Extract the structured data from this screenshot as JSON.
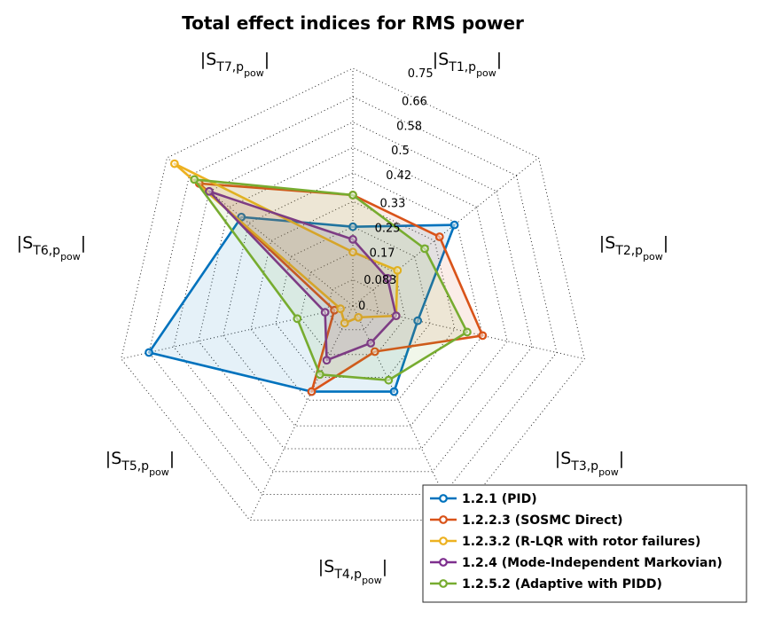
{
  "chart_data": {
    "type": "radar",
    "title": "Total effect indices for RMS power",
    "axes": [
      {
        "base": "|S",
        "sub": "T1,p",
        "subsub": "pow",
        "tail": "|"
      },
      {
        "base": "|S",
        "sub": "T2,p",
        "subsub": "pow",
        "tail": "|"
      },
      {
        "base": "|S",
        "sub": "T3,p",
        "subsub": "pow",
        "tail": "|"
      },
      {
        "base": "|S",
        "sub": "T4,p",
        "subsub": "pow",
        "tail": "|"
      },
      {
        "base": "|S",
        "sub": "T5,p",
        "subsub": "pow",
        "tail": "|"
      },
      {
        "base": "|S",
        "sub": "T6,p",
        "subsub": "pow",
        "tail": "|"
      },
      {
        "base": "|S",
        "sub": "T7,p",
        "subsub": "pow",
        "tail": "|"
      }
    ],
    "rlim": [
      0,
      0.75
    ],
    "ticks": [
      0,
      0.083,
      0.17,
      0.25,
      0.33,
      0.42,
      0.5,
      0.58,
      0.66,
      0.75
    ],
    "tick_labels": [
      "0",
      "0.083",
      "0.17",
      "0.25",
      "0.33",
      "0.42",
      "0.5",
      "0.58",
      "0.66",
      "0.75"
    ],
    "grid": true,
    "legend_position": "bottom-right",
    "series": [
      {
        "name": "1.2.1 (PID)",
        "color": "#0072BD",
        "values": [
          0.41,
          0.21,
          0.3,
          0.3,
          0.66,
          0.45,
          0.25
        ]
      },
      {
        "name": "1.2.2.3 (SOSMC Direct)",
        "color": "#D95319",
        "values": [
          0.35,
          0.42,
          0.16,
          0.3,
          0.06,
          0.62,
          0.35
        ]
      },
      {
        "name": "1.2.3.2 (R-LQR with rotor failures)",
        "color": "#EDB120",
        "values": [
          0.18,
          0.14,
          0.04,
          0.06,
          0.04,
          0.72,
          0.17
        ]
      },
      {
        "name": "1.2.4 (Mode-Independent Markovian)",
        "color": "#7E2F8E",
        "values": [
          0.14,
          0.14,
          0.13,
          0.19,
          0.09,
          0.58,
          0.21
        ]
      },
      {
        "name": "1.2.5.2 (Adaptive with PIDD)",
        "color": "#77AC30",
        "values": [
          0.29,
          0.37,
          0.26,
          0.24,
          0.18,
          0.64,
          0.35
        ]
      }
    ]
  }
}
